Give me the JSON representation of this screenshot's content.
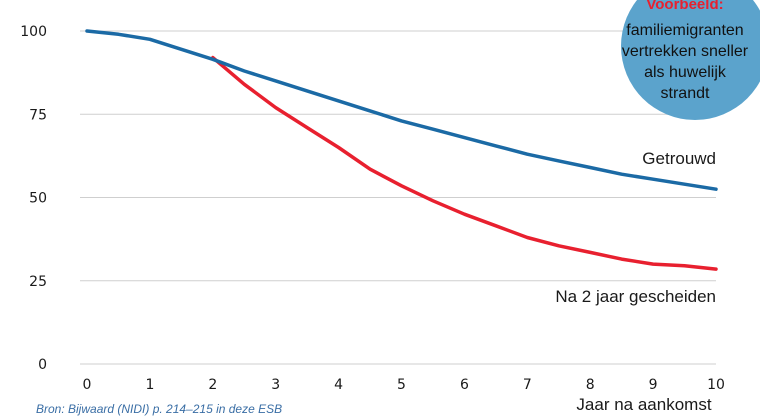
{
  "chart_data": {
    "type": "line",
    "xlabel": "Jaar na aankomst",
    "ylabel": "",
    "xlim": [
      0,
      10
    ],
    "ylim": [
      0,
      100
    ],
    "xticks": [
      0,
      1,
      2,
      3,
      4,
      5,
      6,
      7,
      8,
      9,
      10
    ],
    "yticks": [
      0,
      25,
      50,
      75,
      100
    ],
    "grid": "horizontal",
    "series": [
      {
        "name": "Getrouwd",
        "color": "#1b6aa5",
        "x": [
          0,
          0.5,
          1,
          1.5,
          2,
          2.5,
          3,
          3.5,
          4,
          4.5,
          5,
          5.5,
          6,
          6.5,
          7,
          7.5,
          8,
          8.5,
          9,
          9.5,
          10
        ],
        "y": [
          100,
          99,
          97.5,
          94.5,
          91.5,
          88,
          85,
          82,
          79,
          76,
          73,
          70.5,
          68,
          65.5,
          63,
          61,
          59,
          57,
          55.5,
          54,
          52.5
        ]
      },
      {
        "name": "Na 2 jaar gescheiden",
        "color": "#e8202f",
        "x": [
          2,
          2.5,
          3,
          3.5,
          4,
          4.5,
          5,
          5.5,
          6,
          6.5,
          7,
          7.5,
          8,
          8.5,
          9,
          9.5,
          10
        ],
        "y": [
          92,
          84,
          77,
          71,
          65,
          58.5,
          53.5,
          49,
          45,
          41.5,
          38,
          35.5,
          33.5,
          31.5,
          30,
          29.5,
          28.5
        ]
      }
    ]
  },
  "badge": {
    "heading": "Voorbeeld:",
    "lines": [
      "familiemigranten",
      "vertrekken sneller",
      "als huwelijk",
      "strandt"
    ],
    "color": "#5ba3cc"
  },
  "source": "Bron: Bijwaard (NIDI) p. 214–215 in deze ESB"
}
